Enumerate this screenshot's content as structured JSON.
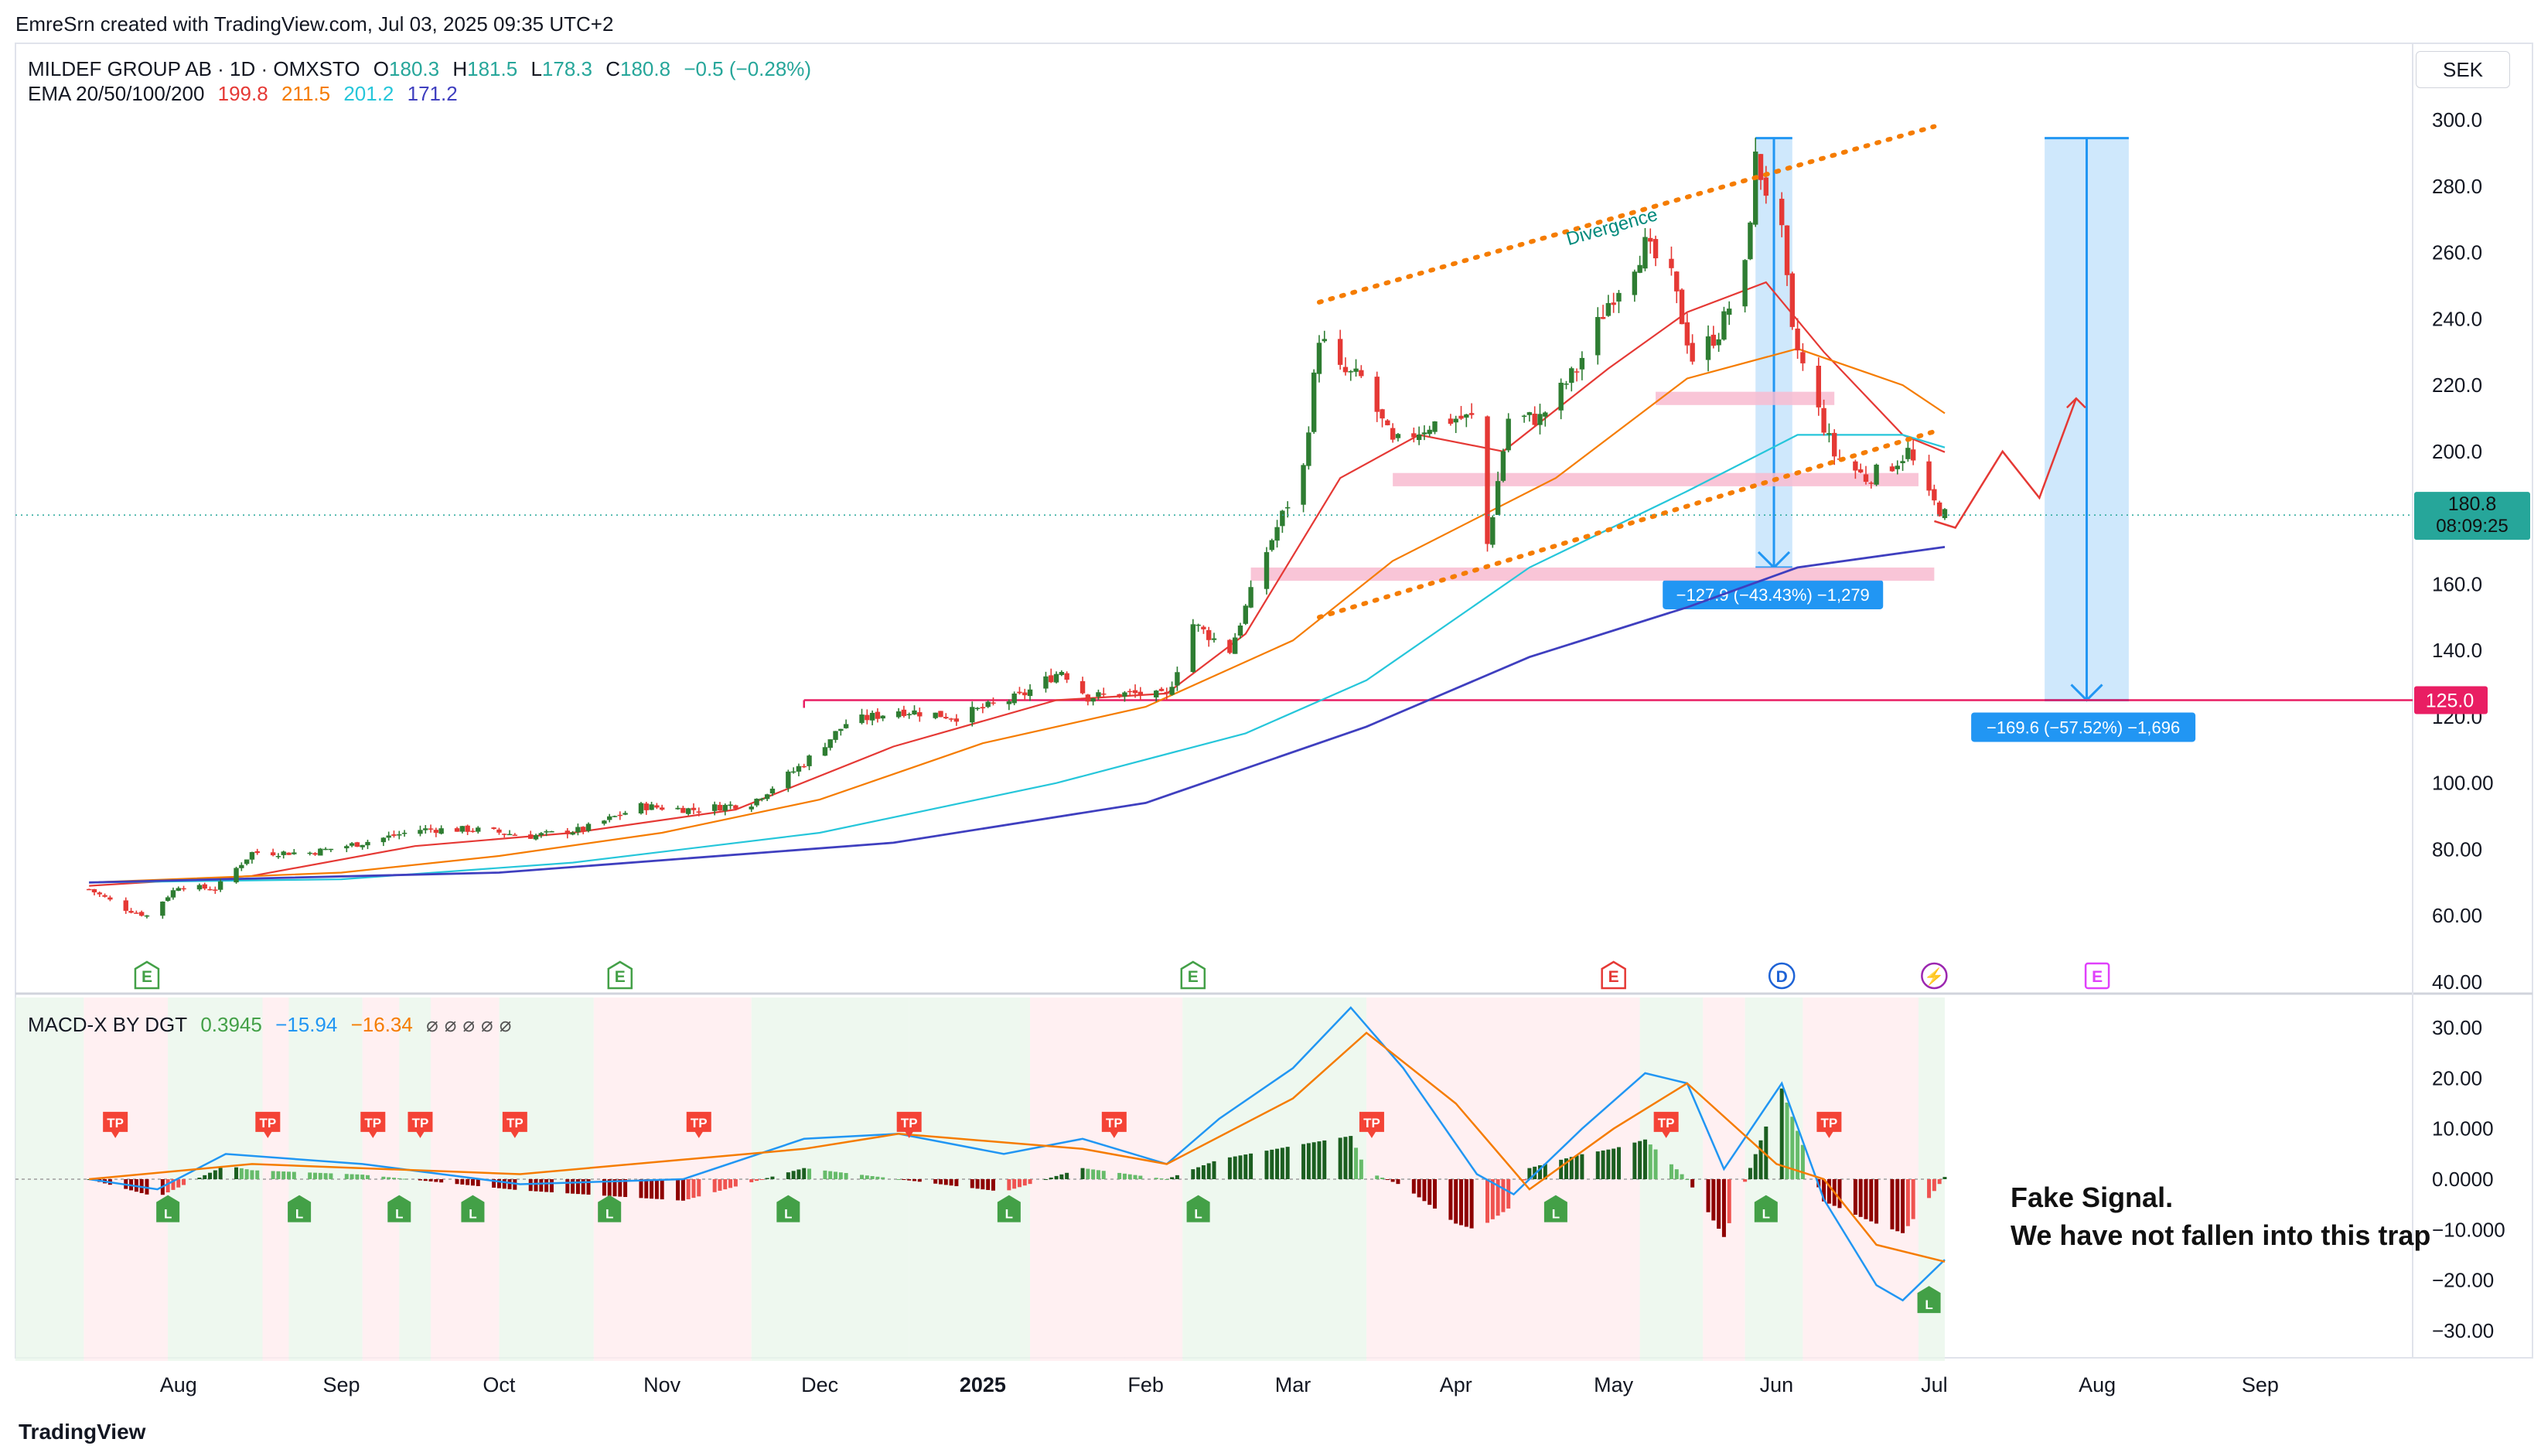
{
  "header": {
    "author_line": "EmreSrn created with TradingView.com, Jul 03, 2025 09:35 UTC+2",
    "symbol": "MILDEF GROUP AB · 1D · OMXSTO",
    "ohlc": [
      {
        "k": "O",
        "v": "180.3"
      },
      {
        "k": "H",
        "v": "181.5"
      },
      {
        "k": "L",
        "v": "178.3"
      },
      {
        "k": "C",
        "v": "180.8"
      },
      {
        "k": "",
        "v": "−0.5 (−0.28%)"
      }
    ],
    "ema_label": "EMA 20/50/100/200",
    "ema_values": [
      "199.8",
      "211.5",
      "201.2",
      "171.2"
    ],
    "currency": "SEK",
    "footer_logo": "TradingView"
  },
  "colors": {
    "up": "#26a69a",
    "up_dark": "#2e7d32",
    "down": "#e53935",
    "ema20": "#e53935",
    "ema50": "#f57c00",
    "ema100": "#26c6da",
    "ema200": "#3f3fbf",
    "divergence": "#f57c00",
    "support": "#f8bbd0",
    "target": "#e91e63",
    "measure": "#2196f3",
    "measure_fill": "#bbdefb",
    "macd": "#2196f3",
    "signal": "#f57c00",
    "macd_dark": "#7b1f1f",
    "bg_green": "#e8f5e9",
    "bg_red": "#ffebee"
  },
  "chart_data": [
    {
      "type": "line",
      "title": "MILDEF GROUP AB · 1D · OMXSTO",
      "xlabel": "",
      "ylabel": "",
      "ylim": [
        40,
        300
      ],
      "y_ticks": [
        "300.0",
        "280.0",
        "260.0",
        "240.0",
        "220.0",
        "200.0",
        "180.0",
        "160.0",
        "140.0",
        "120.0",
        "100.00",
        "80.00",
        "60.00",
        "40.00"
      ],
      "x_ticks": [
        "Aug",
        "Sep",
        "Oct",
        "Nov",
        "Dec",
        "2025",
        "Feb",
        "Mar",
        "Apr",
        "May",
        "Jun",
        "Jul",
        "Aug",
        "Sep"
      ],
      "last_price": "180.8",
      "countdown": "08:09:25",
      "target_label": "125.0",
      "divergence_label": "Divergence",
      "measure_labels": [
        "−127.9 (−43.43%) −1,279",
        "−169.6 (−57.52%) −1,696"
      ],
      "event_markers": [
        "E",
        "E",
        "E",
        "E",
        "D",
        "⚡",
        "E"
      ],
      "close_path": [
        [
          "2024-07-15",
          68
        ],
        [
          "2024-07-22",
          62
        ],
        [
          "2024-07-26",
          60
        ],
        [
          "2024-08-01",
          69
        ],
        [
          "2024-08-08",
          68
        ],
        [
          "2024-08-15",
          79
        ],
        [
          "2024-08-26",
          79
        ],
        [
          "2024-09-05",
          82
        ],
        [
          "2024-09-16",
          86
        ],
        [
          "2024-09-26",
          86
        ],
        [
          "2024-10-07",
          84
        ],
        [
          "2024-10-17",
          86
        ],
        [
          "2024-10-28",
          93
        ],
        [
          "2024-11-07",
          92
        ],
        [
          "2024-11-18",
          94
        ],
        [
          "2024-11-28",
          106
        ],
        [
          "2024-12-06",
          118
        ],
        [
          "2024-12-16",
          122
        ],
        [
          "2024-12-27",
          120
        ],
        [
          "2025-01-08",
          126
        ],
        [
          "2025-01-16",
          134
        ],
        [
          "2025-01-21",
          126
        ],
        [
          "2025-01-29",
          127
        ],
        [
          "2025-02-05",
          126
        ],
        [
          "2025-02-10",
          148
        ],
        [
          "2025-02-17",
          140
        ],
        [
          "2025-02-24",
          170
        ],
        [
          "2025-03-03",
          195
        ],
        [
          "2025-03-06",
          235
        ],
        [
          "2025-03-10",
          224
        ],
        [
          "2025-03-14",
          222
        ],
        [
          "2025-03-20",
          202
        ],
        [
          "2025-03-27",
          208
        ],
        [
          "2025-04-01",
          210
        ],
        [
          "2025-04-04",
          210
        ],
        [
          "2025-04-07",
          172
        ],
        [
          "2025-04-11",
          210
        ],
        [
          "2025-04-17",
          210
        ],
        [
          "2025-04-24",
          225
        ],
        [
          "2025-04-30",
          245
        ],
        [
          "2025-05-07",
          262
        ],
        [
          "2025-05-12",
          252
        ],
        [
          "2025-05-16",
          228
        ],
        [
          "2025-05-21",
          236
        ],
        [
          "2025-05-26",
          255
        ],
        [
          "2025-05-28",
          288
        ],
        [
          "2025-06-02",
          265
        ],
        [
          "2025-06-04",
          235
        ],
        [
          "2025-06-09",
          212
        ],
        [
          "2025-06-12",
          199
        ],
        [
          "2025-06-18",
          192
        ],
        [
          "2025-06-23",
          196
        ],
        [
          "2025-06-26",
          200
        ],
        [
          "2025-06-30",
          186
        ],
        [
          "2025-07-03",
          180.8
        ]
      ],
      "series": [
        {
          "name": "EMA 20",
          "values": [
            [
              "2024-07-15",
              69
            ],
            [
              "2024-08-15",
              72
            ],
            [
              "2024-09-15",
              81
            ],
            [
              "2024-10-15",
              85
            ],
            [
              "2024-11-15",
              92
            ],
            [
              "2024-12-15",
              111
            ],
            [
              "2025-01-15",
              125
            ],
            [
              "2025-02-05",
              127
            ],
            [
              "2025-02-20",
              145
            ],
            [
              "2025-03-10",
              192
            ],
            [
              "2025-03-25",
              205
            ],
            [
              "2025-04-10",
              200
            ],
            [
              "2025-04-30",
              225
            ],
            [
              "2025-05-15",
              242
            ],
            [
              "2025-05-30",
              251
            ],
            [
              "2025-06-10",
              230
            ],
            [
              "2025-06-25",
              205
            ],
            [
              "2025-07-03",
              199.8
            ]
          ]
        },
        {
          "name": "EMA 50",
          "values": [
            [
              "2024-07-15",
              70
            ],
            [
              "2024-09-01",
              73
            ],
            [
              "2024-10-01",
              78
            ],
            [
              "2024-11-01",
              85
            ],
            [
              "2024-12-01",
              95
            ],
            [
              "2025-01-01",
              112
            ],
            [
              "2025-02-01",
              123
            ],
            [
              "2025-03-01",
              143
            ],
            [
              "2025-03-20",
              167
            ],
            [
              "2025-04-20",
              192
            ],
            [
              "2025-05-15",
              222
            ],
            [
              "2025-06-05",
              231
            ],
            [
              "2025-06-25",
              220
            ],
            [
              "2025-07-03",
              211.5
            ]
          ]
        },
        {
          "name": "EMA 100",
          "values": [
            [
              "2024-07-15",
              70
            ],
            [
              "2024-09-01",
              71
            ],
            [
              "2024-10-15",
              76
            ],
            [
              "2024-12-01",
              85
            ],
            [
              "2025-01-15",
              100
            ],
            [
              "2025-02-20",
              115
            ],
            [
              "2025-03-15",
              131
            ],
            [
              "2025-04-15",
              165
            ],
            [
              "2025-05-15",
              188
            ],
            [
              "2025-06-05",
              205
            ],
            [
              "2025-06-25",
              205
            ],
            [
              "2025-07-03",
              201.2
            ]
          ]
        },
        {
          "name": "EMA 200",
          "values": [
            [
              "2024-07-15",
              70
            ],
            [
              "2024-10-01",
              73
            ],
            [
              "2024-12-15",
              82
            ],
            [
              "2025-02-01",
              94
            ],
            [
              "2025-03-15",
              117
            ],
            [
              "2025-04-15",
              138
            ],
            [
              "2025-05-15",
              153
            ],
            [
              "2025-06-05",
              165
            ],
            [
              "2025-07-03",
              171.2
            ]
          ]
        }
      ],
      "projection": [
        [
          "2025-07-01",
          179
        ],
        [
          "2025-07-05",
          177
        ],
        [
          "2025-07-14",
          200
        ],
        [
          "2025-07-21",
          186
        ],
        [
          "2025-07-28",
          216
        ]
      ],
      "support_zones": [
        {
          "from": "2025-05-09",
          "to": "2025-06-12",
          "y": [
            214,
            218
          ]
        },
        {
          "from": "2025-03-20",
          "to": "2025-06-28",
          "y": [
            189.5,
            193.5
          ]
        },
        {
          "from": "2025-02-21",
          "to": "2025-07-01",
          "y": [
            161,
            165
          ]
        }
      ],
      "target_line": {
        "from": "2024-11-28",
        "y": 125
      },
      "divergence_lines": [
        {
          "from": [
            "2025-03-06",
            245
          ],
          "to": [
            "2025-07-01",
            298
          ]
        },
        {
          "from": [
            "2025-03-06",
            150
          ],
          "to": [
            "2025-07-01",
            206
          ]
        }
      ],
      "measures": [
        {
          "x": [
            "2025-05-28",
            "2025-06-04"
          ],
          "y": [
            294.5,
            165
          ]
        },
        {
          "x": [
            "2025-07-22",
            "2025-08-07"
          ],
          "y": [
            294.5,
            125
          ]
        }
      ]
    },
    {
      "type": "line",
      "title": "MACD-X BY DGT",
      "legend_values": [
        "0.3945",
        "−15.94",
        "−16.34"
      ],
      "ylim": [
        -36,
        36
      ],
      "y_ticks": [
        "30.00",
        "20.00",
        "10.000",
        "0.0000",
        "−10.000",
        "−20.00",
        "−30.00"
      ],
      "annotation": [
        "Fake Signal.",
        "We have not fallen into this trap"
      ],
      "marker_labels": [
        "TP",
        "L"
      ],
      "series": [
        {
          "name": "MACD",
          "values": [
            [
              "2024-07-15",
              0
            ],
            [
              "2024-07-28",
              -2
            ],
            [
              "2024-08-10",
              5
            ],
            [
              "2024-09-05",
              3
            ],
            [
              "2024-10-05",
              -1
            ],
            [
              "2024-11-05",
              0
            ],
            [
              "2024-11-28",
              8
            ],
            [
              "2024-12-16",
              9
            ],
            [
              "2025-01-05",
              5
            ],
            [
              "2025-01-20",
              8
            ],
            [
              "2025-02-05",
              3
            ],
            [
              "2025-02-15",
              12
            ],
            [
              "2025-03-01",
              22
            ],
            [
              "2025-03-12",
              34
            ],
            [
              "2025-03-22",
              22
            ],
            [
              "2025-04-05",
              1
            ],
            [
              "2025-04-12",
              -3
            ],
            [
              "2025-04-25",
              10
            ],
            [
              "2025-05-07",
              21
            ],
            [
              "2025-05-15",
              19
            ],
            [
              "2025-05-22",
              2
            ],
            [
              "2025-06-02",
              19
            ],
            [
              "2025-06-10",
              -4
            ],
            [
              "2025-06-20",
              -21
            ],
            [
              "2025-06-25",
              -24
            ],
            [
              "2025-07-03",
              -15.94
            ]
          ]
        },
        {
          "name": "Signal",
          "values": [
            [
              "2024-07-15",
              0
            ],
            [
              "2024-08-15",
              3
            ],
            [
              "2024-10-05",
              1
            ],
            [
              "2024-11-28",
              6
            ],
            [
              "2024-12-16",
              9
            ],
            [
              "2025-01-20",
              6
            ],
            [
              "2025-02-05",
              3
            ],
            [
              "2025-03-01",
              16
            ],
            [
              "2025-03-15",
              29
            ],
            [
              "2025-04-01",
              15
            ],
            [
              "2025-04-15",
              -2
            ],
            [
              "2025-05-01",
              10
            ],
            [
              "2025-05-15",
              19
            ],
            [
              "2025-06-01",
              3
            ],
            [
              "2025-06-10",
              0
            ],
            [
              "2025-06-20",
              -13
            ],
            [
              "2025-07-03",
              -16.34
            ]
          ]
        }
      ]
    }
  ]
}
